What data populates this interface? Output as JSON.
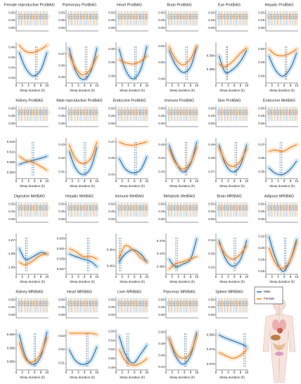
{
  "legend": [
    {
      "name": "Male",
      "color": "#1f77b4"
    },
    {
      "name": "Female",
      "color": "#ff7f0e"
    }
  ],
  "sleep_axis": {
    "xlabel": "Sleep duration (h)",
    "xlim": [
      0,
      10.5
    ],
    "xticks": [
      0,
      2,
      4,
      6,
      8,
      10
    ]
  },
  "strip": {
    "ylim": [
      -0.1,
      0.6
    ],
    "yticks": [
      {
        "value": 0.5,
        "label": "0.50"
      },
      0.25,
      {
        "value": 0,
        "label": "0.00"
      }
    ],
    "x": [
      1,
      2,
      3,
      4,
      5,
      6,
      7,
      8,
      9,
      10
    ],
    "low": 0.08,
    "q1": 0.3,
    "median": 0.37,
    "q3": 0.45,
    "high": 0.56
  },
  "chart_data": [
    {
      "type": "line",
      "title": "Female reproductive ProtBAG",
      "ylim": [
        0.425,
        0.465
      ],
      "yticks": [
        0.43,
        0.44,
        0.45,
        0.46
      ],
      "x": [
        1,
        3,
        5.5,
        8,
        10
      ],
      "series": [
        {
          "values": [
            0.455,
            0.44,
            0.432,
            0.438,
            0.455
          ],
          "optimum": 6.3
        },
        {
          "values": [
            0.462,
            0.456,
            0.455,
            0.458,
            0.462
          ],
          "optimum": 6.8
        }
      ]
    },
    {
      "type": "line",
      "title": "Pulmonary ProtBAG",
      "ylim": [
        0.445,
        0.48
      ],
      "yticks": [
        0.45,
        0.46,
        0.47
      ],
      "x": [
        1,
        3,
        5.5,
        8,
        10
      ],
      "series": [
        {
          "values": [
            0.475,
            0.456,
            0.448,
            0.455,
            0.475
          ],
          "optimum": 6.2
        },
        {
          "values": [
            0.47,
            0.458,
            0.452,
            0.457,
            0.468
          ],
          "optimum": 6.7
        }
      ]
    },
    {
      "type": "line",
      "title": "Heart ProtBAG",
      "ylim": [
        0.375,
        0.405
      ],
      "yticks": [
        0.38,
        0.39,
        {
          "value": 0.4,
          "label": "0.40"
        }
      ],
      "x": [
        1,
        3,
        5.5,
        8,
        10
      ],
      "series": [
        {
          "values": [
            0.4,
            0.385,
            0.378,
            0.385,
            0.402
          ],
          "optimum": 6.0
        },
        {
          "values": [
            0.392,
            0.39,
            0.389,
            0.391,
            0.395
          ],
          "optimum": 6.5
        }
      ]
    },
    {
      "type": "line",
      "title": "Brain ProtBAG",
      "ylim": [
        0.475,
        0.525
      ],
      "yticks": [
        0.48,
        {
          "value": 0.5,
          "label": "0.50"
        },
        0.52
      ],
      "x": [
        1,
        3,
        5.5,
        8,
        10
      ],
      "series": [
        {
          "values": [
            0.515,
            0.498,
            0.488,
            0.495,
            0.52
          ],
          "optimum": 6.4
        },
        {
          "values": [
            0.52,
            0.505,
            0.497,
            0.505,
            0.52
          ],
          "optimum": 6.9
        }
      ]
    },
    {
      "type": "line",
      "title": "Eye ProtBAG",
      "ylim": [
        0.38,
        0.395
      ],
      "yticks": [
        0.385,
        {
          "value": 0.39,
          "label": "0.390"
        }
      ],
      "x": [
        1,
        3,
        5.5,
        8,
        10
      ],
      "series": [
        {
          "values": [
            0.39,
            0.384,
            0.385,
            0.388,
            0.392
          ],
          "optimum": 3.8
        },
        {
          "values": [
            0.387,
            0.386,
            0.388,
            0.391,
            0.393
          ],
          "optimum": 3.4
        }
      ]
    },
    {
      "type": "line",
      "title": "Hepatic ProtBAG",
      "ylim": [
        0.475,
        0.505
      ],
      "yticks": [
        0.48,
        0.49,
        {
          "value": 0.5,
          "label": "0.50"
        }
      ],
      "x": [
        1,
        3,
        5.5,
        8,
        10
      ],
      "series": [
        {
          "values": [
            0.495,
            0.485,
            0.48,
            0.486,
            0.497
          ],
          "optimum": 6.3
        },
        {
          "values": [
            0.5,
            0.496,
            0.495,
            0.497,
            0.5
          ],
          "optimum": 6.8
        }
      ]
    },
    {
      "type": "line",
      "title": "Kidney ProtBAG",
      "ylim": [
        0.497,
        0.517
      ],
      "yticks": [
        {
          "value": 0.5,
          "label": "0.500"
        },
        0.505,
        {
          "value": 0.51,
          "label": "0.510"
        },
        0.515
      ],
      "x": [
        1,
        3,
        5.5,
        8,
        10
      ],
      "series": [
        {
          "values": [
            0.504,
            0.505,
            0.506,
            0.507,
            0.508
          ],
          "optimum": 5.2
        },
        {
          "values": [
            0.508,
            0.506,
            0.505,
            0.503,
            0.501
          ],
          "optimum": 5.7
        }
      ]
    },
    {
      "type": "line",
      "title": "Male reproductive ProtBAG",
      "ylim": [
        0.405,
        0.435
      ],
      "yticks": [
        0.41,
        0.42,
        0.43
      ],
      "x": [
        1,
        3,
        5.5,
        8,
        10
      ],
      "series": [
        {
          "values": [
            0.425,
            0.413,
            0.408,
            0.413,
            0.428
          ],
          "optimum": 5.8
        },
        {
          "values": [
            0.43,
            0.42,
            0.416,
            0.42,
            0.432
          ],
          "optimum": 6.4
        }
      ]
    },
    {
      "type": "line",
      "title": "Endocrine ProtBAG",
      "ylim": [
        0.425,
        0.475
      ],
      "yticks": [
        0.43,
        0.45,
        0.47
      ],
      "x": [
        1,
        3,
        5.5,
        8,
        10
      ],
      "series": [
        {
          "values": [
            0.45,
            0.437,
            0.432,
            0.436,
            0.452
          ],
          "optimum": 6.1
        },
        {
          "values": [
            0.47,
            0.467,
            0.466,
            0.468,
            0.47
          ],
          "optimum": 6.6
        }
      ]
    },
    {
      "type": "line",
      "title": "Immune ProtBAG",
      "ylim": [
        0.425,
        0.455
      ],
      "yticks": [
        0.43,
        0.44,
        0.45
      ],
      "x": [
        1,
        3,
        5.5,
        8,
        10
      ],
      "series": [
        {
          "values": [
            0.45,
            0.438,
            0.43,
            0.436,
            0.452
          ],
          "optimum": 6.3
        },
        {
          "values": [
            0.447,
            0.437,
            0.432,
            0.437,
            0.448
          ],
          "optimum": 6.8
        }
      ]
    },
    {
      "type": "line",
      "title": "Skin ProtBAG",
      "ylim": [
        0.465,
        0.495
      ],
      "yticks": [
        0.47,
        0.48,
        0.49
      ],
      "x": [
        1,
        3,
        5.5,
        8,
        10
      ],
      "series": [
        {
          "values": [
            0.49,
            0.476,
            0.47,
            0.475,
            0.49
          ],
          "optimum": 6.2
        },
        {
          "values": [
            0.488,
            0.478,
            0.474,
            0.478,
            0.487
          ],
          "optimum": 6.7
        }
      ]
    },
    {
      "type": "line",
      "title": "Endocrine MetBAG",
      "ylim": [
        0.345,
        0.375
      ],
      "yticks": [
        0.35,
        0.36,
        0.37
      ],
      "x": [
        1,
        3,
        5.5,
        8,
        10
      ],
      "series": [
        {
          "values": [
            0.353,
            0.349,
            0.348,
            0.352,
            0.358
          ],
          "optimum": 4.6
        },
        {
          "values": [
            0.365,
            0.366,
            0.365,
            0.368,
            0.37
          ],
          "optimum": 5.2
        }
      ]
    },
    {
      "type": "line",
      "title": "Digestive MetBAG",
      "ylim": [
        -1.895,
        -1.865
      ],
      "yticks": [
        -1.89,
        -1.88,
        -1.87
      ],
      "x": [
        1,
        3,
        5.5,
        8,
        10
      ],
      "series": [
        {
          "values": [
            -1.876,
            -1.884,
            -1.882,
            -1.879,
            -1.88
          ],
          "optimum": 3.6
        },
        {
          "values": [
            -1.886,
            -1.888,
            -1.885,
            -1.881,
            -1.88
          ],
          "optimum": 3.1
        }
      ]
    },
    {
      "type": "line",
      "title": "Hepatic MetBAG",
      "ylim": [
        0.536,
        0.544
      ],
      "yticks": [
        0.537,
        0.539,
        0.541,
        0.543
      ],
      "x": [
        1,
        3,
        5.5,
        8,
        10
      ],
      "series": [
        {
          "values": [
            0.54,
            0.5395,
            0.539,
            0.5385,
            0.5375
          ],
          "optimum": 7.4
        },
        {
          "values": [
            0.541,
            0.5405,
            0.5395,
            0.5395,
            0.539
          ],
          "optimum": 6.9
        }
      ]
    },
    {
      "type": "line",
      "title": "Immune MetBAG",
      "ylim": [
        0.401,
        0.406
      ],
      "yticks": [
        0.402,
        0.404
      ],
      "x": [
        1,
        3,
        5.5,
        8,
        10
      ],
      "series": [
        {
          "values": [
            0.4025,
            0.4035,
            0.404,
            0.4035,
            0.4025
          ],
          "optimum": 1.6
        },
        {
          "values": [
            0.403,
            0.4045,
            0.404,
            0.403,
            0.4025
          ],
          "optimum": 1.1
        }
      ]
    },
    {
      "type": "line",
      "title": "Metabolic MetBAG",
      "ylim": [
        0.462,
        0.478
      ],
      "yticks": [
        0.465,
        {
          "value": 0.47,
          "label": "0.470"
        },
        0.475
      ],
      "x": [
        1,
        3,
        5.5,
        8,
        10
      ],
      "series": [
        {
          "values": [
            0.468,
            0.465,
            0.466,
            0.468,
            0.476
          ],
          "optimum": 3.7
        },
        {
          "values": [
            0.464,
            0.466,
            0.467,
            0.468,
            0.469
          ],
          "optimum": 3.2
        }
      ]
    },
    {
      "type": "line",
      "title": "Brain MRIBAG",
      "ylim": [
        0.315,
        0.345
      ],
      "yticks": [
        0.32,
        0.33,
        0.34
      ],
      "x": [
        1,
        3,
        5.5,
        8,
        10
      ],
      "series": [
        {
          "values": [
            0.34,
            0.327,
            0.321,
            0.326,
            0.34
          ],
          "optimum": 5.9
        },
        {
          "values": [
            0.338,
            0.33,
            0.326,
            0.33,
            0.336
          ],
          "optimum": 6.4
        }
      ]
    },
    {
      "type": "line",
      "title": "Adipose MRIBAG",
      "ylim": [
        0.255,
        0.325
      ],
      "yticks": [
        0.26,
        0.28,
        {
          "value": 0.3,
          "label": "0.30"
        },
        0.32
      ],
      "x": [
        1,
        3,
        5.5,
        8,
        10
      ],
      "series": [
        {
          "values": [
            0.32,
            0.285,
            0.26,
            0.28,
            0.315
          ],
          "optimum": 6.0
        },
        {
          "values": [
            0.3,
            0.275,
            0.265,
            0.28,
            0.31
          ],
          "optimum": 6.5
        }
      ]
    },
    {
      "type": "line",
      "title": "Kidney MRIBAG",
      "ylim": [
        0.587,
        0.602
      ],
      "yticks": [
        {
          "value": 0.59,
          "label": "0.590"
        },
        0.595,
        {
          "value": 0.6,
          "label": "0.600"
        }
      ],
      "x": [
        1,
        3,
        5.5,
        8,
        10
      ],
      "series": [
        {
          "values": [
            0.6,
            0.592,
            0.589,
            0.592,
            0.601
          ],
          "optimum": 5.8
        },
        {
          "values": [
            0.597,
            0.591,
            0.59,
            0.593,
            0.599
          ],
          "optimum": 6.3
        }
      ]
    },
    {
      "type": "line",
      "title": "Heart MRIBAG",
      "ylim": [
        0.505,
        0.535
      ],
      "yticks": [
        0.51,
        0.52,
        0.53
      ],
      "x": [
        1,
        3,
        5.5,
        8,
        10
      ],
      "series": [
        {
          "values": [
            0.52,
            0.512,
            0.509,
            0.512,
            0.522
          ],
          "optimum": 7.1
        },
        {
          "values": [
            0.532,
            0.532,
            0.532,
            0.532,
            0.531
          ],
          "optimum": 6.6
        }
      ]
    },
    {
      "type": "line",
      "title": "Liver MRIBAG",
      "ylim": [
        0.475,
        0.565
      ],
      "yticks": [
        0.48,
        {
          "value": 0.5,
          "label": "0.50"
        },
        0.52,
        0.54,
        0.56
      ],
      "x": [
        1,
        3,
        5.5,
        8,
        10
      ],
      "series": [
        {
          "values": [
            0.55,
            0.51,
            0.49,
            0.51,
            0.53
          ],
          "optimum": 4.1
        },
        {
          "values": [
            0.52,
            0.495,
            0.485,
            0.49,
            0.5
          ],
          "optimum": 3.5
        }
      ]
    },
    {
      "type": "line",
      "title": "Pancreas MRIBAG",
      "ylim": [
        0.435,
        0.505
      ],
      "yticks": [
        0.44,
        0.46,
        0.48,
        {
          "value": 0.5,
          "label": "0.50"
        }
      ],
      "x": [
        1,
        3,
        5.5,
        8,
        10
      ],
      "series": [
        {
          "values": [
            0.49,
            0.46,
            0.445,
            0.46,
            0.5
          ],
          "optimum": 6.0
        },
        {
          "values": [
            0.49,
            0.465,
            0.455,
            0.465,
            0.495
          ],
          "optimum": 6.5
        }
      ]
    },
    {
      "type": "line",
      "title": "Spleen MRIBAG",
      "ylim": [
        0.568,
        0.582
      ],
      "yticks": [
        {
          "value": 0.57,
          "label": "0.570"
        },
        0.575,
        {
          "value": 0.58,
          "label": "0.580"
        }
      ],
      "x": [
        1,
        3,
        5.5,
        8,
        10
      ],
      "series": [
        {
          "values": [
            0.58,
            0.579,
            0.578,
            0.577,
            0.576
          ],
          "optimum": 9.6
        },
        {
          "values": [
            0.574,
            0.573,
            0.572,
            0.573,
            0.575
          ],
          "optimum": 9.1
        }
      ]
    }
  ]
}
